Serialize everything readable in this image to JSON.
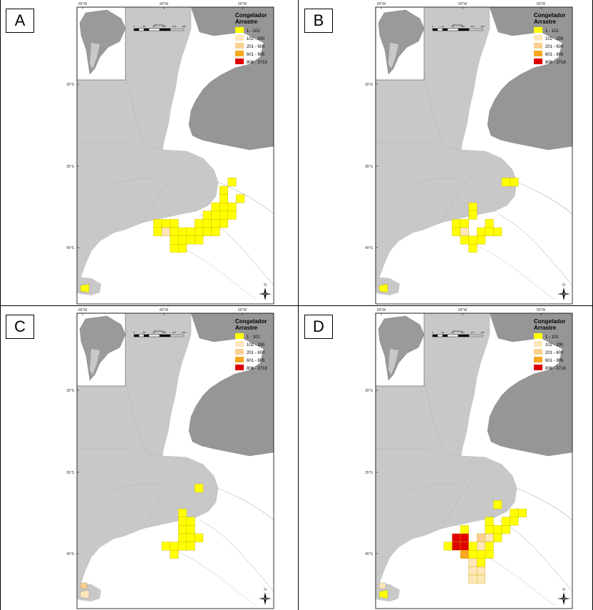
{
  "colors": {
    "land": "#c8c8c8",
    "uruguay": "#969696",
    "sea": "#ffffff",
    "frame": "#000000"
  },
  "legend": {
    "title_line1": "Congelador",
    "title_line2": "Arrastre",
    "classes": [
      {
        "label": "1 - 101",
        "color": "#ffff00"
      },
      {
        "label": "102 - 200",
        "color": "#fde6b8"
      },
      {
        "label": "201 - 600",
        "color": "#fbcf8e"
      },
      {
        "label": "601 - 805",
        "color": "#f7a81e"
      },
      {
        "label": "806 - 3718",
        "color": "#e00000"
      }
    ]
  },
  "axis": {
    "top_ticks": [
      "65°W",
      "60°W",
      "55°W"
    ],
    "left_ticks": [
      "30°S",
      "35°S",
      "40°S"
    ]
  },
  "scale_bar": {
    "unit": "Kilometers",
    "labels": [
      "0",
      "45",
      "90",
      "180",
      "270",
      "360"
    ]
  },
  "north_arrow": "N",
  "panels": [
    {
      "label": "A",
      "cells": [
        {
          "c": 8,
          "r": 14,
          "v": 1
        },
        {
          "c": 7,
          "r": 15,
          "v": 1
        },
        {
          "c": 7,
          "r": 16,
          "v": 1
        },
        {
          "c": 9,
          "r": 16,
          "v": 1
        },
        {
          "c": 6,
          "r": 17,
          "v": 1
        },
        {
          "c": 7,
          "r": 17,
          "v": 1
        },
        {
          "c": 8,
          "r": 17,
          "v": 1
        },
        {
          "c": 5,
          "r": 18,
          "v": 1
        },
        {
          "c": 6,
          "r": 18,
          "v": 1
        },
        {
          "c": 7,
          "r": 18,
          "v": 1
        },
        {
          "c": 8,
          "r": 18,
          "v": 1
        },
        {
          "c": -1,
          "r": 19,
          "v": 1
        },
        {
          "c": 0,
          "r": 19,
          "v": 1
        },
        {
          "c": 1,
          "r": 19,
          "v": 1
        },
        {
          "c": 4,
          "r": 19,
          "v": 1
        },
        {
          "c": 5,
          "r": 19,
          "v": 1
        },
        {
          "c": 6,
          "r": 19,
          "v": 1
        },
        {
          "c": 7,
          "r": 19,
          "v": 1
        },
        {
          "c": -1,
          "r": 20,
          "v": 1
        },
        {
          "c": 0,
          "r": 20,
          "v": 2
        },
        {
          "c": 1,
          "r": 20,
          "v": 1
        },
        {
          "c": 2,
          "r": 20,
          "v": 1
        },
        {
          "c": 3,
          "r": 20,
          "v": 1
        },
        {
          "c": 4,
          "r": 20,
          "v": 1
        },
        {
          "c": 5,
          "r": 20,
          "v": 1
        },
        {
          "c": 6,
          "r": 20,
          "v": 1
        },
        {
          "c": 1,
          "r": 21,
          "v": 1
        },
        {
          "c": 2,
          "r": 21,
          "v": 1
        },
        {
          "c": 3,
          "r": 21,
          "v": 1
        },
        {
          "c": 4,
          "r": 21,
          "v": 1
        },
        {
          "c": 1,
          "r": 22,
          "v": 1
        },
        {
          "c": 2,
          "r": 22,
          "v": 1
        }
      ],
      "extra_marks": [
        {
          "type": "flag",
          "v": 1
        }
      ]
    },
    {
      "label": "B",
      "cells": [
        {
          "c": 6,
          "r": 14,
          "v": 1
        },
        {
          "c": 5,
          "r": 14,
          "v": 1
        },
        {
          "c": 1,
          "r": 17,
          "v": 1
        },
        {
          "c": 1,
          "r": 18,
          "v": 1
        },
        {
          "c": -1,
          "r": 19,
          "v": 1
        },
        {
          "c": 0,
          "r": 19,
          "v": 1
        },
        {
          "c": 3,
          "r": 19,
          "v": 1
        },
        {
          "c": -1,
          "r": 20,
          "v": 1
        },
        {
          "c": 0,
          "r": 20,
          "v": 2
        },
        {
          "c": 2,
          "r": 20,
          "v": 1
        },
        {
          "c": 3,
          "r": 20,
          "v": 1
        },
        {
          "c": 4,
          "r": 20,
          "v": 1
        },
        {
          "c": 0,
          "r": 21,
          "v": 1
        },
        {
          "c": 1,
          "r": 21,
          "v": 1
        },
        {
          "c": 2,
          "r": 21,
          "v": 1
        },
        {
          "c": 1,
          "r": 22,
          "v": 1
        }
      ],
      "extra_marks": [
        {
          "type": "flag",
          "v": 1
        }
      ]
    },
    {
      "label": "C",
      "cells": [
        {
          "c": 4,
          "r": 14,
          "v": 1
        },
        {
          "c": 2,
          "r": 17,
          "v": 1
        },
        {
          "c": 2,
          "r": 18,
          "v": 1
        },
        {
          "c": 3,
          "r": 18,
          "v": 1
        },
        {
          "c": 2,
          "r": 19,
          "v": 1
        },
        {
          "c": 3,
          "r": 19,
          "v": 1
        },
        {
          "c": 2,
          "r": 20,
          "v": 1
        },
        {
          "c": 3,
          "r": 20,
          "v": 1
        },
        {
          "c": 4,
          "r": 20,
          "v": 1
        },
        {
          "c": 0,
          "r": 21,
          "v": 1
        },
        {
          "c": 1,
          "r": 21,
          "v": 1
        },
        {
          "c": 2,
          "r": 21,
          "v": 1
        },
        {
          "c": 3,
          "r": 21,
          "v": 1
        },
        {
          "c": 1,
          "r": 22,
          "v": 1
        }
      ],
      "extra_marks": [
        {
          "type": "flag",
          "v": 2
        },
        {
          "type": "flag2",
          "v": 3
        }
      ]
    },
    {
      "label": "D",
      "cells": [
        {
          "c": 4,
          "r": 16,
          "v": 1
        },
        {
          "c": 6,
          "r": 17,
          "v": 1
        },
        {
          "c": 7,
          "r": 17,
          "v": 1
        },
        {
          "c": 3,
          "r": 18,
          "v": 1
        },
        {
          "c": 5,
          "r": 18,
          "v": 1
        },
        {
          "c": 6,
          "r": 18,
          "v": 1
        },
        {
          "c": 0,
          "r": 19,
          "v": 1
        },
        {
          "c": 3,
          "r": 19,
          "v": 1
        },
        {
          "c": 4,
          "r": 19,
          "v": 1
        },
        {
          "c": 5,
          "r": 19,
          "v": 1
        },
        {
          "c": -1,
          "r": 20,
          "v": 5
        },
        {
          "c": 0,
          "r": 20,
          "v": 5
        },
        {
          "c": 2,
          "r": 20,
          "v": 3
        },
        {
          "c": 3,
          "r": 20,
          "v": 2
        },
        {
          "c": 4,
          "r": 20,
          "v": 1
        },
        {
          "c": -2,
          "r": 21,
          "v": 1
        },
        {
          "c": -1,
          "r": 21,
          "v": 5
        },
        {
          "c": 0,
          "r": 21,
          "v": 5
        },
        {
          "c": 1,
          "r": 21,
          "v": 1
        },
        {
          "c": 2,
          "r": 21,
          "v": 2
        },
        {
          "c": 3,
          "r": 21,
          "v": 1
        },
        {
          "c": 0,
          "r": 22,
          "v": 4
        },
        {
          "c": 1,
          "r": 22,
          "v": 1
        },
        {
          "c": 2,
          "r": 22,
          "v": 1
        },
        {
          "c": 3,
          "r": 22,
          "v": 1
        },
        {
          "c": 1,
          "r": 23,
          "v": 2
        },
        {
          "c": 2,
          "r": 23,
          "v": 1
        },
        {
          "c": 1,
          "r": 24,
          "v": 2
        },
        {
          "c": 2,
          "r": 24,
          "v": 2
        },
        {
          "c": 1,
          "r": 25,
          "v": 2
        },
        {
          "c": 2,
          "r": 25,
          "v": 2
        }
      ],
      "extra_marks": [
        {
          "type": "flag",
          "v": 1
        },
        {
          "type": "flag2",
          "v": 2
        }
      ]
    }
  ]
}
